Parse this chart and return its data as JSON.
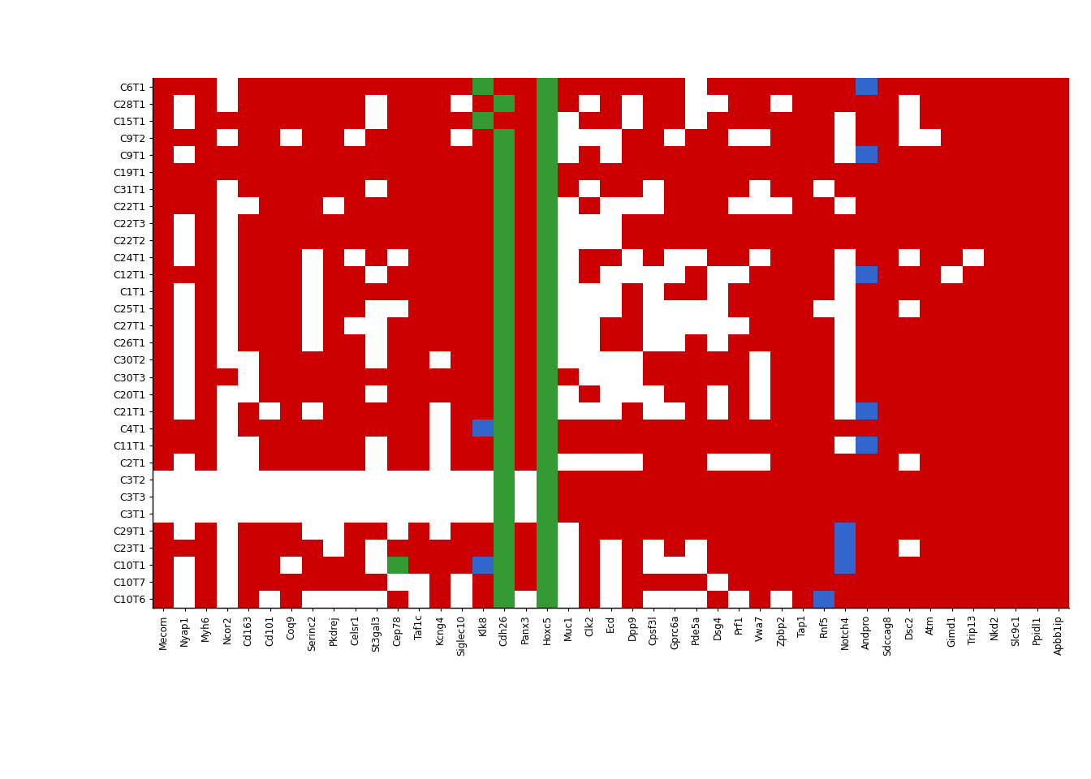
{
  "rows": [
    "C6T1",
    "C28T1",
    "C15T1",
    "C9T2",
    "C9T1",
    "C19T1",
    "C31T1",
    "C22T1",
    "C22T3",
    "C22T2",
    "C24T1",
    "C12T1",
    "C1T1",
    "C25T1",
    "C27T1",
    "C26T1",
    "C30T2",
    "C30T3",
    "C20T1",
    "C21T1",
    "C4T1",
    "C11T1",
    "C2T1",
    "C3T2",
    "C3T3",
    "C3T1",
    "C29T1",
    "C23T1",
    "C10T1",
    "C10T7",
    "C10T6"
  ],
  "cols": [
    "Mecom",
    "Nyap1",
    "Myh6",
    "Ncor2",
    "Cd163",
    "Cd101",
    "Coq9",
    "Serinc2",
    "Pkdrej",
    "Celsr1",
    "St3gal3",
    "Cep78",
    "Taf1c",
    "Kcng4",
    "Siglec10",
    "Klk8",
    "Cdh26",
    "Panx3",
    "Hoxc5",
    "Muc1",
    "Clk2",
    "Ecd",
    "Dpp9",
    "Cpsf3l",
    "Gprc6a",
    "Pde5a",
    "Dsg4",
    "Prf1",
    "Vwa7",
    "Zpbp2",
    "Tap1",
    "Rnf5",
    "Notch4",
    "Andpro",
    "Sdccag8",
    "Dsc2",
    "Atm",
    "Gimd1",
    "Trip13",
    "Nkd2",
    "Slc9c1",
    "Ppidl1",
    "Apbb1ip"
  ],
  "colors": {
    "red": "#CC0000",
    "white": "#FFFFFF",
    "blue": "#3366CC",
    "green": "#339933"
  },
  "matrix": [
    [
      1,
      1,
      1,
      0,
      1,
      1,
      1,
      1,
      1,
      1,
      1,
      1,
      1,
      1,
      1,
      4,
      1,
      1,
      3,
      1,
      1,
      1,
      1,
      1,
      1,
      0,
      1,
      1,
      1,
      1,
      1,
      1,
      1,
      2,
      1,
      1,
      1,
      1,
      1,
      1,
      1,
      1,
      1
    ],
    [
      1,
      0,
      1,
      0,
      1,
      1,
      1,
      1,
      1,
      1,
      0,
      1,
      1,
      1,
      0,
      1,
      4,
      1,
      3,
      1,
      0,
      1,
      0,
      1,
      1,
      0,
      0,
      1,
      1,
      0,
      1,
      1,
      1,
      1,
      1,
      0,
      1,
      1,
      1,
      1,
      1,
      1,
      1
    ],
    [
      1,
      0,
      1,
      1,
      1,
      1,
      1,
      1,
      1,
      1,
      0,
      1,
      1,
      1,
      1,
      4,
      1,
      1,
      3,
      0,
      1,
      1,
      0,
      1,
      1,
      0,
      1,
      1,
      1,
      1,
      1,
      1,
      0,
      1,
      1,
      0,
      1,
      1,
      1,
      1,
      1,
      1,
      1
    ],
    [
      1,
      1,
      1,
      0,
      1,
      1,
      0,
      1,
      1,
      0,
      1,
      1,
      1,
      1,
      0,
      1,
      4,
      1,
      3,
      0,
      0,
      0,
      1,
      1,
      0,
      1,
      1,
      0,
      0,
      1,
      1,
      1,
      0,
      1,
      1,
      0,
      0,
      1,
      1,
      1,
      1,
      1,
      1
    ],
    [
      1,
      0,
      1,
      1,
      1,
      1,
      1,
      1,
      1,
      1,
      1,
      1,
      1,
      1,
      1,
      1,
      4,
      1,
      3,
      0,
      1,
      0,
      1,
      1,
      1,
      1,
      1,
      1,
      1,
      1,
      1,
      1,
      0,
      2,
      1,
      1,
      1,
      1,
      1,
      1,
      1,
      1,
      1
    ],
    [
      1,
      1,
      1,
      1,
      1,
      1,
      1,
      1,
      1,
      1,
      1,
      1,
      1,
      1,
      1,
      1,
      4,
      1,
      3,
      1,
      1,
      1,
      1,
      1,
      1,
      1,
      1,
      1,
      1,
      1,
      1,
      1,
      1,
      1,
      1,
      1,
      1,
      1,
      1,
      1,
      1,
      1,
      1
    ],
    [
      1,
      1,
      1,
      0,
      1,
      1,
      1,
      1,
      1,
      1,
      0,
      1,
      1,
      1,
      1,
      1,
      4,
      1,
      3,
      1,
      0,
      1,
      1,
      0,
      1,
      1,
      1,
      1,
      0,
      1,
      1,
      0,
      1,
      1,
      1,
      1,
      1,
      1,
      1,
      1,
      1,
      1,
      1
    ],
    [
      1,
      1,
      1,
      0,
      0,
      1,
      1,
      1,
      0,
      1,
      1,
      1,
      1,
      1,
      1,
      1,
      4,
      1,
      3,
      0,
      1,
      0,
      0,
      0,
      1,
      1,
      1,
      0,
      0,
      0,
      1,
      1,
      0,
      1,
      1,
      1,
      1,
      1,
      1,
      1,
      1,
      1,
      1
    ],
    [
      1,
      0,
      1,
      0,
      1,
      1,
      1,
      1,
      1,
      1,
      1,
      1,
      1,
      1,
      1,
      1,
      4,
      1,
      3,
      0,
      0,
      0,
      1,
      1,
      1,
      1,
      1,
      1,
      1,
      1,
      1,
      1,
      1,
      1,
      1,
      1,
      1,
      1,
      1,
      1,
      1,
      1,
      1
    ],
    [
      1,
      0,
      1,
      0,
      1,
      1,
      1,
      1,
      1,
      1,
      1,
      1,
      1,
      1,
      1,
      1,
      4,
      1,
      3,
      0,
      0,
      0,
      1,
      1,
      1,
      1,
      1,
      1,
      1,
      1,
      1,
      1,
      1,
      1,
      1,
      1,
      1,
      1,
      1,
      1,
      1,
      1,
      1
    ],
    [
      1,
      0,
      1,
      0,
      1,
      1,
      1,
      0,
      1,
      0,
      1,
      0,
      1,
      1,
      1,
      1,
      4,
      1,
      3,
      0,
      1,
      1,
      0,
      1,
      0,
      0,
      1,
      1,
      0,
      1,
      1,
      1,
      0,
      1,
      1,
      0,
      1,
      1,
      0,
      1,
      1,
      1,
      1
    ],
    [
      1,
      1,
      1,
      0,
      1,
      1,
      1,
      0,
      1,
      1,
      0,
      1,
      1,
      1,
      1,
      1,
      4,
      1,
      3,
      0,
      1,
      0,
      0,
      0,
      0,
      1,
      0,
      0,
      1,
      1,
      1,
      1,
      0,
      2,
      1,
      1,
      1,
      0,
      1,
      1,
      1,
      1,
      1
    ],
    [
      1,
      0,
      1,
      0,
      1,
      1,
      1,
      0,
      1,
      1,
      1,
      1,
      1,
      1,
      1,
      1,
      4,
      1,
      3,
      0,
      0,
      0,
      1,
      0,
      1,
      1,
      0,
      1,
      1,
      1,
      1,
      1,
      0,
      1,
      1,
      1,
      1,
      1,
      1,
      1,
      1,
      1,
      1
    ],
    [
      1,
      0,
      1,
      0,
      1,
      1,
      1,
      0,
      1,
      1,
      0,
      0,
      1,
      1,
      1,
      1,
      4,
      1,
      3,
      0,
      0,
      0,
      1,
      0,
      0,
      0,
      0,
      1,
      1,
      1,
      1,
      0,
      0,
      1,
      1,
      0,
      1,
      1,
      1,
      1,
      1,
      1,
      1
    ],
    [
      1,
      0,
      1,
      0,
      1,
      1,
      1,
      0,
      1,
      0,
      0,
      1,
      1,
      1,
      1,
      1,
      4,
      1,
      3,
      0,
      0,
      1,
      1,
      0,
      0,
      0,
      0,
      0,
      1,
      1,
      1,
      1,
      0,
      1,
      1,
      1,
      1,
      1,
      1,
      1,
      1,
      1,
      1
    ],
    [
      1,
      0,
      1,
      0,
      1,
      1,
      1,
      0,
      1,
      1,
      0,
      1,
      1,
      1,
      1,
      1,
      4,
      1,
      3,
      0,
      0,
      1,
      1,
      0,
      0,
      1,
      0,
      1,
      1,
      1,
      1,
      1,
      0,
      1,
      1,
      1,
      1,
      1,
      1,
      1,
      1,
      1,
      1
    ],
    [
      1,
      0,
      1,
      0,
      0,
      1,
      1,
      1,
      1,
      1,
      0,
      1,
      1,
      0,
      1,
      1,
      4,
      1,
      3,
      0,
      0,
      0,
      0,
      1,
      1,
      1,
      1,
      1,
      0,
      1,
      1,
      1,
      0,
      1,
      1,
      1,
      1,
      1,
      1,
      1,
      1,
      1,
      1
    ],
    [
      1,
      0,
      1,
      1,
      0,
      1,
      1,
      1,
      1,
      1,
      1,
      1,
      1,
      1,
      1,
      1,
      4,
      1,
      3,
      1,
      0,
      0,
      0,
      1,
      1,
      1,
      1,
      1,
      0,
      1,
      1,
      1,
      0,
      1,
      1,
      1,
      1,
      1,
      1,
      1,
      1,
      1,
      1
    ],
    [
      1,
      0,
      1,
      0,
      0,
      1,
      1,
      1,
      1,
      1,
      0,
      1,
      1,
      1,
      1,
      1,
      4,
      1,
      3,
      0,
      1,
      0,
      0,
      0,
      1,
      1,
      0,
      1,
      0,
      1,
      1,
      1,
      0,
      1,
      1,
      1,
      1,
      1,
      1,
      1,
      1,
      1,
      1
    ],
    [
      1,
      0,
      1,
      0,
      1,
      0,
      1,
      0,
      1,
      1,
      1,
      1,
      1,
      0,
      1,
      1,
      4,
      1,
      3,
      0,
      0,
      0,
      1,
      0,
      0,
      1,
      0,
      1,
      0,
      1,
      1,
      1,
      0,
      2,
      1,
      1,
      1,
      1,
      1,
      1,
      1,
      1,
      1
    ],
    [
      1,
      1,
      1,
      0,
      1,
      1,
      1,
      1,
      1,
      1,
      1,
      1,
      1,
      0,
      1,
      2,
      4,
      1,
      3,
      1,
      1,
      1,
      1,
      1,
      1,
      1,
      1,
      1,
      1,
      1,
      1,
      1,
      1,
      1,
      1,
      1,
      1,
      1,
      1,
      1,
      1,
      1,
      1
    ],
    [
      1,
      1,
      1,
      0,
      0,
      1,
      1,
      1,
      1,
      1,
      0,
      1,
      1,
      0,
      1,
      1,
      4,
      1,
      3,
      1,
      1,
      1,
      1,
      1,
      1,
      1,
      1,
      1,
      1,
      1,
      1,
      1,
      0,
      2,
      1,
      1,
      1,
      1,
      1,
      1,
      1,
      1,
      1
    ],
    [
      1,
      0,
      1,
      0,
      0,
      1,
      1,
      1,
      1,
      1,
      0,
      1,
      1,
      0,
      1,
      1,
      4,
      1,
      3,
      0,
      0,
      0,
      0,
      1,
      1,
      1,
      0,
      0,
      0,
      1,
      1,
      1,
      1,
      1,
      1,
      0,
      1,
      1,
      1,
      1,
      1,
      1,
      1
    ],
    [
      0,
      0,
      0,
      0,
      0,
      0,
      0,
      0,
      0,
      0,
      0,
      0,
      0,
      0,
      0,
      0,
      4,
      0,
      3,
      1,
      1,
      1,
      1,
      1,
      1,
      1,
      1,
      1,
      1,
      1,
      1,
      1,
      1,
      1,
      1,
      1,
      1,
      1,
      1,
      1,
      1,
      1,
      1
    ],
    [
      0,
      0,
      0,
      0,
      0,
      0,
      0,
      0,
      0,
      0,
      0,
      0,
      0,
      0,
      0,
      0,
      4,
      0,
      3,
      1,
      1,
      1,
      1,
      1,
      1,
      1,
      1,
      1,
      1,
      1,
      1,
      1,
      1,
      1,
      1,
      1,
      1,
      1,
      1,
      1,
      1,
      1,
      1
    ],
    [
      0,
      0,
      0,
      0,
      0,
      0,
      0,
      0,
      0,
      0,
      0,
      0,
      0,
      0,
      0,
      0,
      4,
      0,
      3,
      1,
      1,
      1,
      1,
      1,
      1,
      1,
      1,
      1,
      1,
      1,
      1,
      1,
      1,
      1,
      1,
      1,
      1,
      1,
      1,
      1,
      1,
      1,
      1
    ],
    [
      1,
      0,
      1,
      0,
      1,
      1,
      1,
      0,
      0,
      1,
      1,
      0,
      1,
      0,
      1,
      1,
      4,
      1,
      3,
      0,
      1,
      1,
      1,
      1,
      1,
      1,
      1,
      1,
      1,
      1,
      1,
      1,
      2,
      1,
      1,
      1,
      1,
      1,
      1,
      1,
      1,
      1,
      1
    ],
    [
      1,
      1,
      1,
      0,
      1,
      1,
      1,
      1,
      0,
      1,
      0,
      1,
      1,
      1,
      1,
      1,
      4,
      1,
      3,
      0,
      1,
      0,
      1,
      0,
      1,
      0,
      1,
      1,
      1,
      1,
      1,
      1,
      2,
      1,
      1,
      0,
      1,
      1,
      1,
      1,
      1,
      1,
      1
    ],
    [
      1,
      0,
      1,
      0,
      1,
      1,
      0,
      1,
      1,
      1,
      0,
      4,
      1,
      1,
      1,
      2,
      4,
      1,
      3,
      0,
      1,
      0,
      1,
      0,
      0,
      0,
      1,
      1,
      1,
      1,
      1,
      1,
      2,
      1,
      1,
      1,
      1,
      1,
      1,
      1,
      1,
      1,
      1
    ],
    [
      1,
      0,
      1,
      0,
      1,
      1,
      1,
      1,
      1,
      1,
      1,
      0,
      0,
      1,
      0,
      1,
      4,
      1,
      3,
      0,
      1,
      0,
      1,
      1,
      1,
      1,
      0,
      1,
      1,
      1,
      1,
      1,
      1,
      1,
      1,
      1,
      1,
      1,
      1,
      1,
      1,
      1,
      1
    ],
    [
      1,
      0,
      1,
      0,
      1,
      0,
      1,
      0,
      0,
      0,
      0,
      1,
      0,
      1,
      0,
      1,
      4,
      0,
      3,
      0,
      1,
      0,
      1,
      0,
      0,
      0,
      1,
      0,
      1,
      0,
      1,
      2,
      1,
      1,
      1,
      1,
      1,
      1,
      1,
      1,
      1,
      1,
      1
    ]
  ]
}
